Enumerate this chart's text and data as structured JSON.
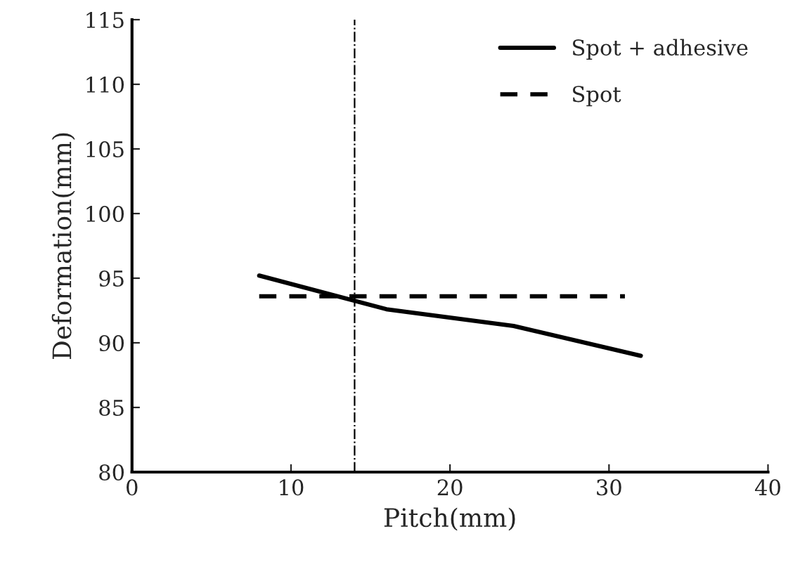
{
  "chart_data": {
    "type": "line",
    "xlabel": "Pitch(mm)",
    "ylabel": "Deformation(mm)",
    "series": [
      {
        "name": "Spot + adhesive",
        "color": "#000000",
        "x": [
          8,
          16,
          24,
          32
        ],
        "values": [
          95.2,
          92.6,
          91.3,
          89.0
        ],
        "line_style": "solid"
      },
      {
        "name": "Spot",
        "color": "#000000",
        "x": [
          8,
          31
        ],
        "values": [
          93.6,
          93.6
        ],
        "line_style": "dashed"
      }
    ],
    "xlim": [
      0,
      40
    ],
    "xticks": [
      0,
      10,
      20,
      30,
      40
    ],
    "ylim": [
      80,
      115
    ],
    "yticks": [
      80,
      85,
      90,
      95,
      100,
      105,
      110,
      115
    ],
    "ref_lines": [
      {
        "axis": "x",
        "value": 14,
        "color": "#000000",
        "line_style": "dashdot"
      }
    ],
    "grid": false,
    "legend": "top right",
    "marker": "none"
  }
}
